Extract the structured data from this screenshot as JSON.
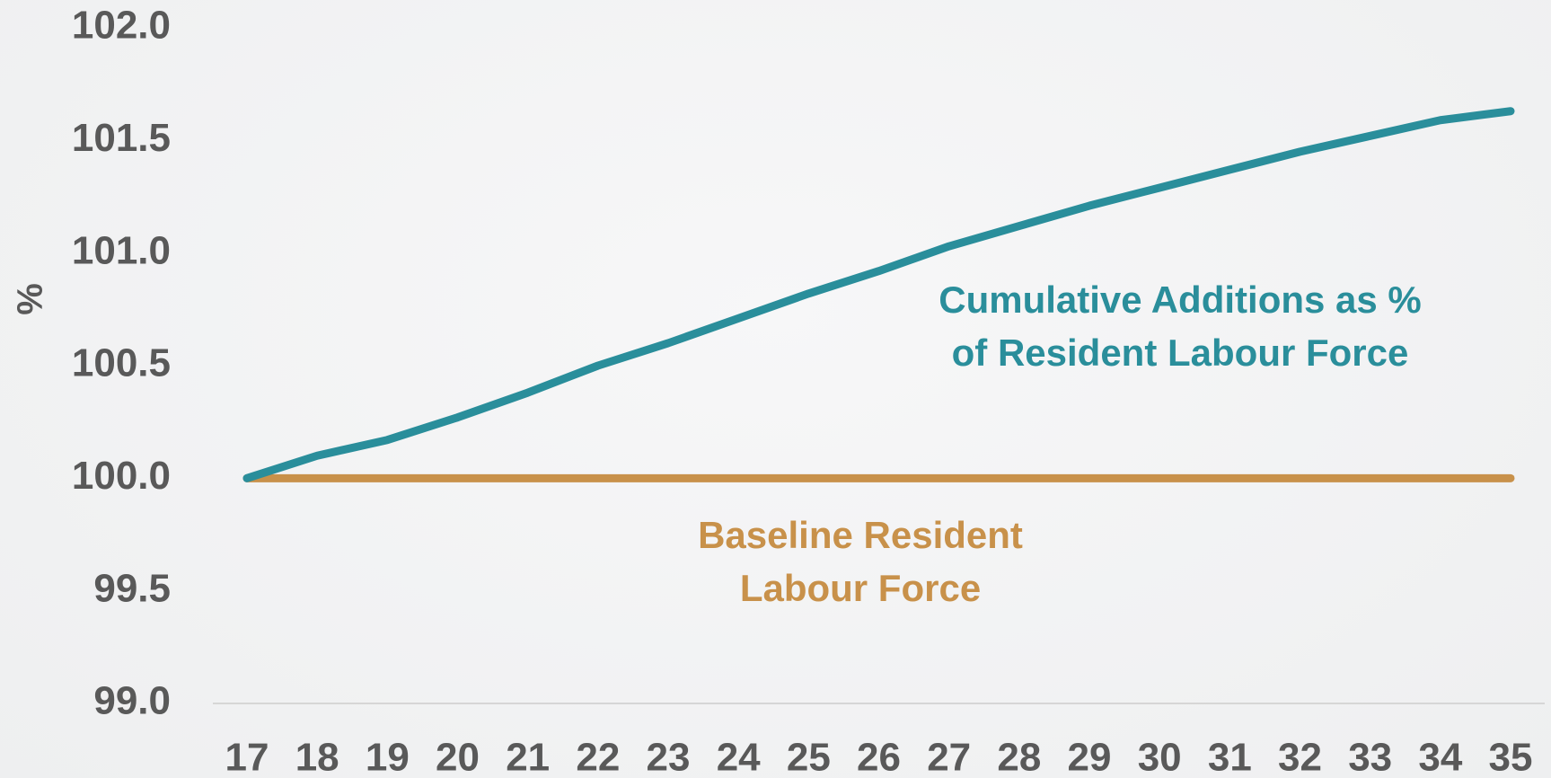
{
  "chart_data": {
    "type": "line",
    "ylabel": "%",
    "categories": [
      "17",
      "18",
      "19",
      "20",
      "21",
      "22",
      "23",
      "24",
      "25",
      "26",
      "27",
      "28",
      "29",
      "30",
      "31",
      "32",
      "33",
      "34",
      "35"
    ],
    "series": [
      {
        "name": "Cumulative Additions as % of Resident Labour Force",
        "color": "#2a8e9b",
        "values": [
          100.0,
          100.1,
          100.17,
          100.27,
          100.38,
          100.5,
          100.6,
          100.71,
          100.82,
          100.92,
          101.03,
          101.12,
          101.21,
          101.29,
          101.37,
          101.45,
          101.52,
          101.59,
          101.63
        ]
      },
      {
        "name": "Baseline Resident Labour Force",
        "color": "#c8914a",
        "values": [
          100.0,
          100.0,
          100.0,
          100.0,
          100.0,
          100.0,
          100.0,
          100.0,
          100.0,
          100.0,
          100.0,
          100.0,
          100.0,
          100.0,
          100.0,
          100.0,
          100.0,
          100.0,
          100.0
        ]
      }
    ],
    "ylim": [
      99.0,
      102.0
    ],
    "yticks": [
      {
        "value": 99,
        "label": "99.0"
      },
      99.5,
      {
        "value": 100,
        "label": "100.0"
      },
      100.5,
      {
        "value": 101,
        "label": "101.0"
      },
      101.5,
      {
        "value": 102,
        "label": "102.0"
      }
    ],
    "grid": false
  }
}
